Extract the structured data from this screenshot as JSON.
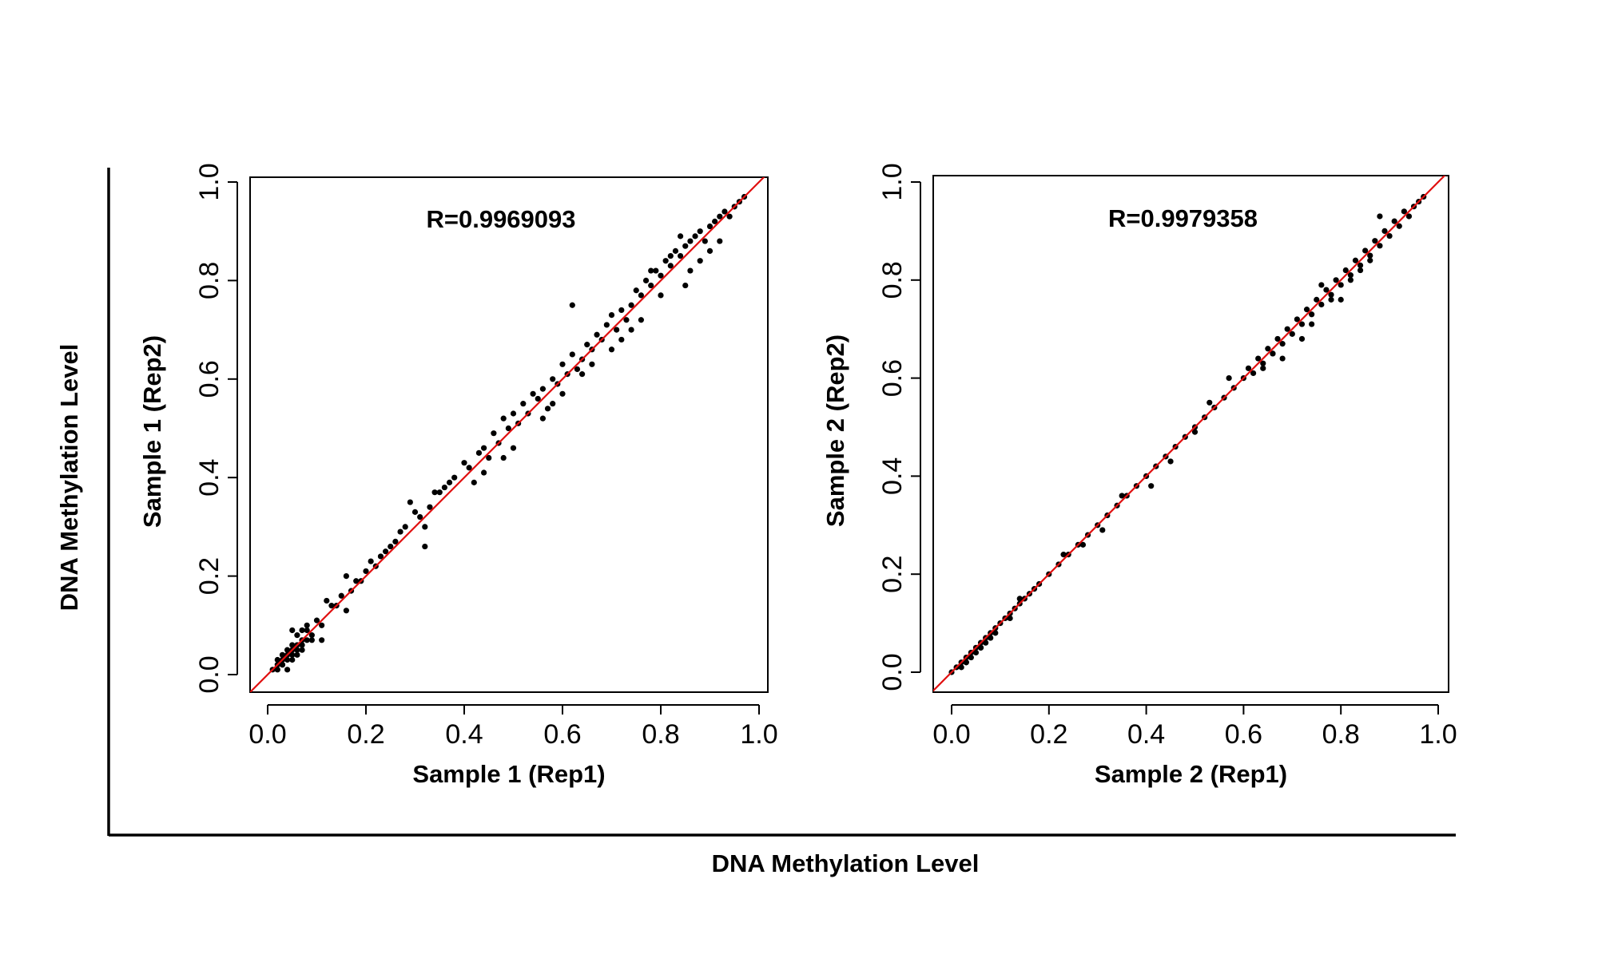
{
  "figure": {
    "outer_ylabel": "DNA Methylation Level",
    "outer_xlabel": "DNA Methylation Level"
  },
  "colors": {
    "points": "#000000",
    "fit_line": "#e01010",
    "axes": "#000000",
    "background": "#ffffff"
  },
  "chart_data": [
    {
      "type": "scatter",
      "title": "",
      "annotation": "R=0.9969093",
      "xlabel": "Sample 1 (Rep1)",
      "ylabel": "Sample 1 (Rep2)",
      "xlim": [
        0.0,
        1.0
      ],
      "ylim": [
        0.0,
        1.0
      ],
      "xticks": [
        "0.0",
        "0.2",
        "0.4",
        "0.6",
        "0.8",
        "1.0"
      ],
      "yticks": [
        "0.0",
        "0.2",
        "0.4",
        "0.6",
        "0.8",
        "1.0"
      ],
      "grid": false,
      "reference_line": {
        "type": "identity",
        "slope": 1,
        "intercept": 0
      },
      "series": [
        {
          "values_note": "",
          "x": [
            0.01,
            0.02,
            0.02,
            0.03,
            0.03,
            0.04,
            0.04,
            0.05,
            0.05,
            0.06,
            0.06,
            0.07,
            0.07,
            0.08,
            0.02,
            0.03,
            0.04,
            0.05,
            0.06,
            0.07,
            0.08,
            0.09,
            0.1,
            0.11,
            0.03,
            0.05,
            0.07,
            0.09,
            0.06,
            0.04,
            0.12,
            0.14,
            0.15,
            0.16,
            0.17,
            0.18,
            0.2,
            0.21,
            0.22,
            0.23,
            0.25,
            0.26,
            0.27,
            0.28,
            0.3,
            0.31,
            0.32,
            0.33,
            0.35,
            0.36,
            0.37,
            0.38,
            0.4,
            0.41,
            0.43,
            0.44,
            0.45,
            0.46,
            0.47,
            0.48,
            0.49,
            0.5,
            0.51,
            0.52,
            0.53,
            0.54,
            0.55,
            0.56,
            0.57,
            0.58,
            0.59,
            0.6,
            0.61,
            0.62,
            0.63,
            0.64,
            0.65,
            0.66,
            0.67,
            0.68,
            0.69,
            0.7,
            0.71,
            0.72,
            0.73,
            0.74,
            0.75,
            0.76,
            0.77,
            0.78,
            0.79,
            0.8,
            0.81,
            0.82,
            0.83,
            0.84,
            0.85,
            0.86,
            0.87,
            0.88,
            0.89,
            0.9,
            0.91,
            0.92,
            0.93,
            0.94,
            0.95,
            0.96,
            0.97,
            0.62,
            0.85,
            0.8,
            0.78,
            0.9,
            0.88,
            0.84,
            0.92,
            0.86,
            0.82,
            0.76,
            0.74,
            0.72,
            0.7,
            0.66,
            0.64,
            0.6,
            0.58,
            0.56,
            0.5,
            0.48,
            0.44,
            0.42,
            0.34,
            0.32,
            0.29,
            0.24,
            0.19,
            0.16,
            0.13,
            0.11,
            0.08,
            0.05
          ],
          "y": [
            0.01,
            0.02,
            0.01,
            0.03,
            0.02,
            0.04,
            0.03,
            0.05,
            0.04,
            0.06,
            0.05,
            0.07,
            0.06,
            0.09,
            0.03,
            0.04,
            0.05,
            0.06,
            0.08,
            0.09,
            0.1,
            0.08,
            0.11,
            0.1,
            0.02,
            0.03,
            0.05,
            0.07,
            0.04,
            0.01,
            0.15,
            0.14,
            0.16,
            0.2,
            0.17,
            0.19,
            0.21,
            0.23,
            0.22,
            0.24,
            0.26,
            0.27,
            0.29,
            0.3,
            0.33,
            0.32,
            0.26,
            0.34,
            0.37,
            0.38,
            0.39,
            0.4,
            0.43,
            0.42,
            0.45,
            0.46,
            0.44,
            0.49,
            0.47,
            0.52,
            0.5,
            0.53,
            0.51,
            0.55,
            0.53,
            0.57,
            0.56,
            0.58,
            0.54,
            0.6,
            0.59,
            0.63,
            0.61,
            0.65,
            0.62,
            0.64,
            0.67,
            0.66,
            0.69,
            0.68,
            0.71,
            0.73,
            0.7,
            0.74,
            0.72,
            0.75,
            0.78,
            0.77,
            0.8,
            0.79,
            0.82,
            0.81,
            0.84,
            0.83,
            0.86,
            0.85,
            0.87,
            0.88,
            0.89,
            0.9,
            0.88,
            0.91,
            0.92,
            0.93,
            0.94,
            0.93,
            0.95,
            0.96,
            0.97,
            0.75,
            0.79,
            0.77,
            0.82,
            0.86,
            0.84,
            0.89,
            0.88,
            0.82,
            0.85,
            0.72,
            0.7,
            0.68,
            0.66,
            0.63,
            0.61,
            0.57,
            0.55,
            0.52,
            0.46,
            0.44,
            0.41,
            0.39,
            0.37,
            0.3,
            0.35,
            0.25,
            0.19,
            0.13,
            0.14,
            0.07,
            0.07,
            0.09
          ]
        }
      ]
    },
    {
      "type": "scatter",
      "title": "",
      "annotation": "R=0.9979358",
      "xlabel": "Sample 2 (Rep1)",
      "ylabel": "Sample 2 (Rep2)",
      "xlim": [
        0.0,
        1.0
      ],
      "ylim": [
        0.0,
        1.0
      ],
      "xticks": [
        "0.0",
        "0.2",
        "0.4",
        "0.6",
        "0.8",
        "1.0"
      ],
      "yticks": [
        "0.0",
        "0.2",
        "0.4",
        "0.6",
        "0.8",
        "1.0"
      ],
      "grid": false,
      "reference_line": {
        "type": "identity",
        "slope": 1,
        "intercept": 0
      },
      "series": [
        {
          "values_note": "",
          "x": [
            0.0,
            0.01,
            0.02,
            0.02,
            0.03,
            0.03,
            0.04,
            0.04,
            0.05,
            0.05,
            0.06,
            0.06,
            0.07,
            0.07,
            0.08,
            0.08,
            0.09,
            0.1,
            0.11,
            0.12,
            0.13,
            0.14,
            0.15,
            0.16,
            0.18,
            0.2,
            0.22,
            0.24,
            0.26,
            0.28,
            0.3,
            0.32,
            0.34,
            0.36,
            0.38,
            0.4,
            0.42,
            0.44,
            0.46,
            0.48,
            0.5,
            0.52,
            0.54,
            0.56,
            0.58,
            0.6,
            0.61,
            0.62,
            0.63,
            0.64,
            0.65,
            0.66,
            0.67,
            0.68,
            0.69,
            0.7,
            0.71,
            0.72,
            0.73,
            0.74,
            0.75,
            0.76,
            0.77,
            0.78,
            0.79,
            0.8,
            0.81,
            0.82,
            0.83,
            0.84,
            0.85,
            0.86,
            0.87,
            0.88,
            0.89,
            0.9,
            0.91,
            0.92,
            0.93,
            0.94,
            0.95,
            0.96,
            0.97,
            0.74,
            0.76,
            0.8,
            0.84,
            0.86,
            0.88,
            0.82,
            0.78,
            0.72,
            0.68,
            0.66,
            0.64,
            0.57,
            0.53,
            0.5,
            0.45,
            0.41,
            0.35,
            0.31,
            0.27,
            0.23,
            0.17,
            0.14,
            0.12,
            0.09,
            0.06,
            0.03
          ],
          "y": [
            0.0,
            0.01,
            0.02,
            0.01,
            0.03,
            0.02,
            0.04,
            0.03,
            0.05,
            0.04,
            0.06,
            0.05,
            0.07,
            0.06,
            0.08,
            0.07,
            0.09,
            0.1,
            0.11,
            0.12,
            0.13,
            0.14,
            0.15,
            0.16,
            0.18,
            0.2,
            0.22,
            0.24,
            0.26,
            0.28,
            0.3,
            0.32,
            0.34,
            0.36,
            0.38,
            0.4,
            0.42,
            0.44,
            0.46,
            0.48,
            0.5,
            0.52,
            0.54,
            0.56,
            0.58,
            0.6,
            0.62,
            0.61,
            0.64,
            0.63,
            0.66,
            0.65,
            0.68,
            0.67,
            0.7,
            0.69,
            0.72,
            0.71,
            0.74,
            0.73,
            0.76,
            0.75,
            0.78,
            0.77,
            0.8,
            0.79,
            0.82,
            0.81,
            0.84,
            0.83,
            0.86,
            0.85,
            0.88,
            0.87,
            0.9,
            0.89,
            0.92,
            0.91,
            0.94,
            0.93,
            0.95,
            0.96,
            0.97,
            0.71,
            0.79,
            0.76,
            0.82,
            0.84,
            0.93,
            0.8,
            0.76,
            0.68,
            0.64,
            0.65,
            0.62,
            0.6,
            0.55,
            0.49,
            0.43,
            0.38,
            0.36,
            0.29,
            0.26,
            0.24,
            0.17,
            0.15,
            0.11,
            0.08,
            0.05,
            0.02
          ]
        }
      ]
    }
  ]
}
